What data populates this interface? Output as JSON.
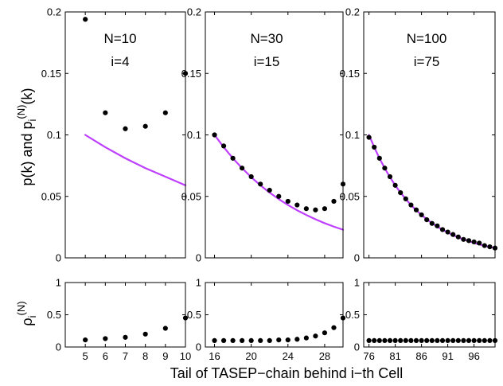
{
  "figure": {
    "xlabel": "Tail of TASEP−chain behind i−th Cell",
    "ylabel_top_parts": {
      "prefix": "p(k) and p",
      "subscript": "i",
      "superscript": "(N)",
      "suffix": "(k)"
    },
    "ylabel_bottom_parts": {
      "prefix": "ρ",
      "subscript": "i",
      "superscript": "(N)"
    }
  },
  "colors": {
    "curve": "#bf3fff",
    "markers": "#000000",
    "axes": "#000000"
  },
  "chart_data": [
    {
      "type": "scatter",
      "panel": "top-1",
      "annotations": [
        "N=10",
        "i=4"
      ],
      "xlim": [
        4,
        10
      ],
      "ylim": [
        0,
        0.2
      ],
      "xticks": [
        5,
        6,
        7,
        8,
        9,
        10
      ],
      "xtick_labels": [],
      "yticks": [
        0,
        0.05,
        0.1,
        0.15,
        0.2
      ],
      "ytick_labels": [
        "0",
        "0.05",
        "0.1",
        "0.15",
        "0.2"
      ],
      "series": [
        {
          "type": "line",
          "x": [
            5,
            6,
            7,
            8,
            9,
            10
          ],
          "y": [
            0.1,
            0.09,
            0.081,
            0.073,
            0.066,
            0.059
          ]
        },
        {
          "type": "scatter",
          "x": [
            5,
            6,
            7,
            8,
            9,
            10
          ],
          "y": [
            0.194,
            0.118,
            0.105,
            0.107,
            0.118,
            0.15
          ]
        }
      ]
    },
    {
      "type": "scatter",
      "panel": "top-2",
      "annotations": [
        "N=30",
        "i=15"
      ],
      "xlim": [
        15,
        30
      ],
      "ylim": [
        0,
        0.2
      ],
      "xticks": [
        16,
        20,
        24,
        28
      ],
      "xtick_labels": [],
      "yticks": [
        0,
        0.05,
        0.1,
        0.15,
        0.2
      ],
      "ytick_labels": [
        "0",
        "0.05",
        "0.1",
        "0.15",
        "0.2"
      ],
      "series": [
        {
          "type": "line",
          "x": [
            16,
            17,
            18,
            19,
            20,
            21,
            22,
            23,
            24,
            25,
            26,
            27,
            28,
            29,
            30
          ],
          "y": [
            0.1,
            0.09,
            0.081,
            0.073,
            0.0656,
            0.059,
            0.0531,
            0.0478,
            0.043,
            0.0387,
            0.0349,
            0.0314,
            0.0282,
            0.0254,
            0.0229
          ]
        },
        {
          "type": "scatter",
          "x": [
            16,
            17,
            18,
            19,
            20,
            21,
            22,
            23,
            24,
            25,
            26,
            27,
            28,
            29,
            30
          ],
          "y": [
            0.1,
            0.091,
            0.081,
            0.073,
            0.066,
            0.06,
            0.055,
            0.05,
            0.046,
            0.043,
            0.04,
            0.039,
            0.04,
            0.046,
            0.06
          ]
        }
      ]
    },
    {
      "type": "scatter",
      "panel": "top-3",
      "annotations": [
        "N=100",
        "i=75"
      ],
      "xlim": [
        75,
        100
      ],
      "ylim": [
        0,
        0.2
      ],
      "xticks": [
        76,
        81,
        86,
        91,
        96
      ],
      "xtick_labels": [],
      "yticks": [
        0,
        0.05,
        0.1,
        0.15,
        0.2
      ],
      "ytick_labels": [
        "0",
        "0.05",
        "0.1",
        "0.15",
        "0.2"
      ],
      "series": [
        {
          "type": "line",
          "x": [
            76,
            77,
            78,
            79,
            80,
            81,
            82,
            83,
            84,
            85,
            86,
            87,
            88,
            89,
            90,
            91,
            92,
            93,
            94,
            95,
            96,
            97,
            98,
            99,
            100
          ],
          "y": [
            0.1,
            0.09,
            0.081,
            0.0729,
            0.0656,
            0.059,
            0.0531,
            0.0478,
            0.043,
            0.0387,
            0.0349,
            0.0314,
            0.0282,
            0.0254,
            0.0229,
            0.0206,
            0.0185,
            0.0167,
            0.015,
            0.0135,
            0.0122,
            0.0109,
            0.0098,
            0.0089,
            0.008
          ]
        },
        {
          "type": "scatter",
          "x": [
            76,
            77,
            78,
            79,
            80,
            81,
            82,
            83,
            84,
            85,
            86,
            87,
            88,
            89,
            90,
            91,
            92,
            93,
            94,
            95,
            96,
            97,
            98,
            99,
            100
          ],
          "y": [
            0.098,
            0.09,
            0.081,
            0.073,
            0.066,
            0.059,
            0.053,
            0.048,
            0.043,
            0.039,
            0.035,
            0.031,
            0.028,
            0.026,
            0.023,
            0.021,
            0.019,
            0.017,
            0.015,
            0.014,
            0.013,
            0.012,
            0.01,
            0.009,
            0.008
          ]
        }
      ]
    },
    {
      "type": "scatter",
      "panel": "bottom-1",
      "xlim": [
        4,
        10
      ],
      "ylim": [
        0,
        1
      ],
      "xticks": [
        5,
        6,
        7,
        8,
        9,
        10
      ],
      "xtick_labels": [
        "5",
        "6",
        "7",
        "8",
        "9",
        "10"
      ],
      "yticks": [
        0,
        0.5,
        1
      ],
      "ytick_labels": [
        "0",
        "0.5",
        "1"
      ],
      "series": [
        {
          "type": "scatter",
          "x": [
            5,
            6,
            7,
            8,
            9,
            10
          ],
          "y": [
            0.11,
            0.13,
            0.15,
            0.2,
            0.29,
            0.45
          ]
        }
      ]
    },
    {
      "type": "scatter",
      "panel": "bottom-2",
      "xlim": [
        15,
        30
      ],
      "ylim": [
        0,
        1
      ],
      "xticks": [
        16,
        20,
        24,
        28
      ],
      "xtick_labels": [
        "16",
        "20",
        "24",
        "28"
      ],
      "yticks": [
        0,
        0.5,
        1
      ],
      "ytick_labels": [
        "0",
        "0.5",
        "1"
      ],
      "series": [
        {
          "type": "scatter",
          "x": [
            16,
            17,
            18,
            19,
            20,
            21,
            22,
            23,
            24,
            25,
            26,
            27,
            28,
            29,
            30
          ],
          "y": [
            0.1,
            0.1,
            0.1,
            0.1,
            0.1,
            0.1,
            0.1,
            0.11,
            0.11,
            0.12,
            0.14,
            0.17,
            0.22,
            0.3,
            0.45
          ]
        }
      ]
    },
    {
      "type": "scatter",
      "panel": "bottom-3",
      "xlim": [
        75,
        100
      ],
      "ylim": [
        0,
        1
      ],
      "xticks": [
        76,
        81,
        86,
        91,
        96
      ],
      "xtick_labels": [
        "76",
        "81",
        "86",
        "91",
        "96"
      ],
      "yticks": [
        0,
        0.5,
        1
      ],
      "ytick_labels": [
        "0",
        "0.5",
        "1"
      ],
      "series": [
        {
          "type": "scatter",
          "x": [
            76,
            77,
            78,
            79,
            80,
            81,
            82,
            83,
            84,
            85,
            86,
            87,
            88,
            89,
            90,
            91,
            92,
            93,
            94,
            95,
            96,
            97,
            98,
            99,
            100
          ],
          "y": [
            0.1,
            0.1,
            0.1,
            0.1,
            0.1,
            0.1,
            0.1,
            0.1,
            0.1,
            0.1,
            0.1,
            0.1,
            0.1,
            0.1,
            0.1,
            0.1,
            0.1,
            0.1,
            0.1,
            0.1,
            0.1,
            0.1,
            0.1,
            0.1,
            0.1
          ]
        }
      ]
    }
  ]
}
